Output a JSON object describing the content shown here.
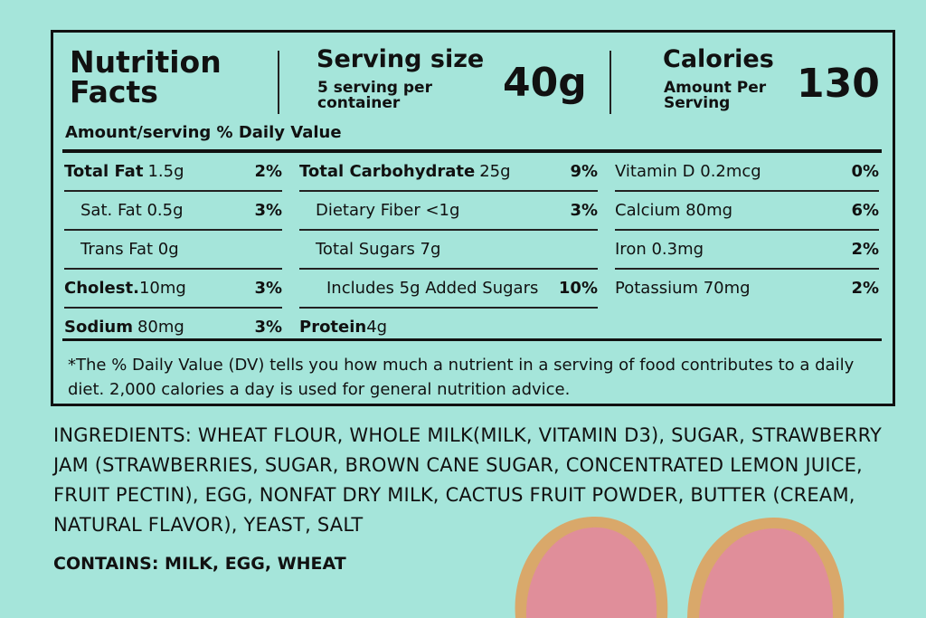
{
  "header": {
    "title_line1": "Nutrition",
    "title_line2": "Facts",
    "serving_label": "Serving size",
    "serving_sub_line1": "5 serving per",
    "serving_sub_line2": "container",
    "serving_value": "40g",
    "calories_label": "Calories",
    "calories_sub_line1": "Amount Per",
    "calories_sub_line2": "Serving",
    "calories_value": "130",
    "amount_serving": "Amount/serving  % Daily Value"
  },
  "columns": {
    "left": [
      {
        "name": "Total Fat",
        "amount": "1.5g",
        "pct": "2%",
        "bold": true
      },
      {
        "name": "Sat. Fat 0.5g",
        "amount": "",
        "pct": "3%",
        "indent": true
      },
      {
        "name": "Trans Fat 0g",
        "amount": "",
        "pct": "",
        "indent": true
      },
      {
        "name": "Cholest.",
        "amount": "10mg",
        "pct": "3%",
        "bold": true
      },
      {
        "name": "Sodium",
        "amount": "80mg",
        "pct": "3%",
        "bold": true
      }
    ],
    "middle": [
      {
        "name": "Total Carbohydrate",
        "amount": "25g",
        "pct": "9%",
        "bold": true
      },
      {
        "name": "Dietary Fiber <1g",
        "amount": "",
        "pct": "3%",
        "indent": true
      },
      {
        "name": "Total Sugars 7g",
        "amount": "",
        "pct": "",
        "indent": true
      },
      {
        "name": "Includes 5g Added Sugars",
        "amount": "",
        "pct": "10%",
        "indent2": true
      },
      {
        "name": "Protein",
        "amount": "4g",
        "pct": "",
        "bold": true
      }
    ],
    "right": [
      {
        "name": "Vitamin D 0.2mcg",
        "amount": "",
        "pct": "0%"
      },
      {
        "name": "Calcium 80mg",
        "amount": "",
        "pct": "6%"
      },
      {
        "name": "Iron 0.3mg",
        "amount": "",
        "pct": "2%"
      },
      {
        "name": "Potassium 70mg",
        "amount": "",
        "pct": "2%"
      }
    ]
  },
  "footnote": "*The % Daily Value (DV) tells you how much a nutrient in a  serving of food contributes to a daily diet. 2,000 calories a day is used for general nutrition advice.",
  "ingredients": "INGREDIENTS: WHEAT FLOUR, WHOLE MILK(MILK, VITAMIN D3), SUGAR, STRAWBERRY JAM (STRAWBERRIES, SUGAR, BROWN CANE SUGAR, CONCENTRATED LEMON JUICE, FRUIT PECTIN), EGG, NONFAT DRY MILK, CACTUS FRUIT POWDER, BUTTER (CREAM, NATURAL FLAVOR), YEAST, SALT",
  "contains": "CONTAINS: MILK, EGG, WHEAT",
  "colors": {
    "background": "#a5e5da",
    "bread_crust": "#d9a86a",
    "bread_crumb": "#e08e9a"
  }
}
